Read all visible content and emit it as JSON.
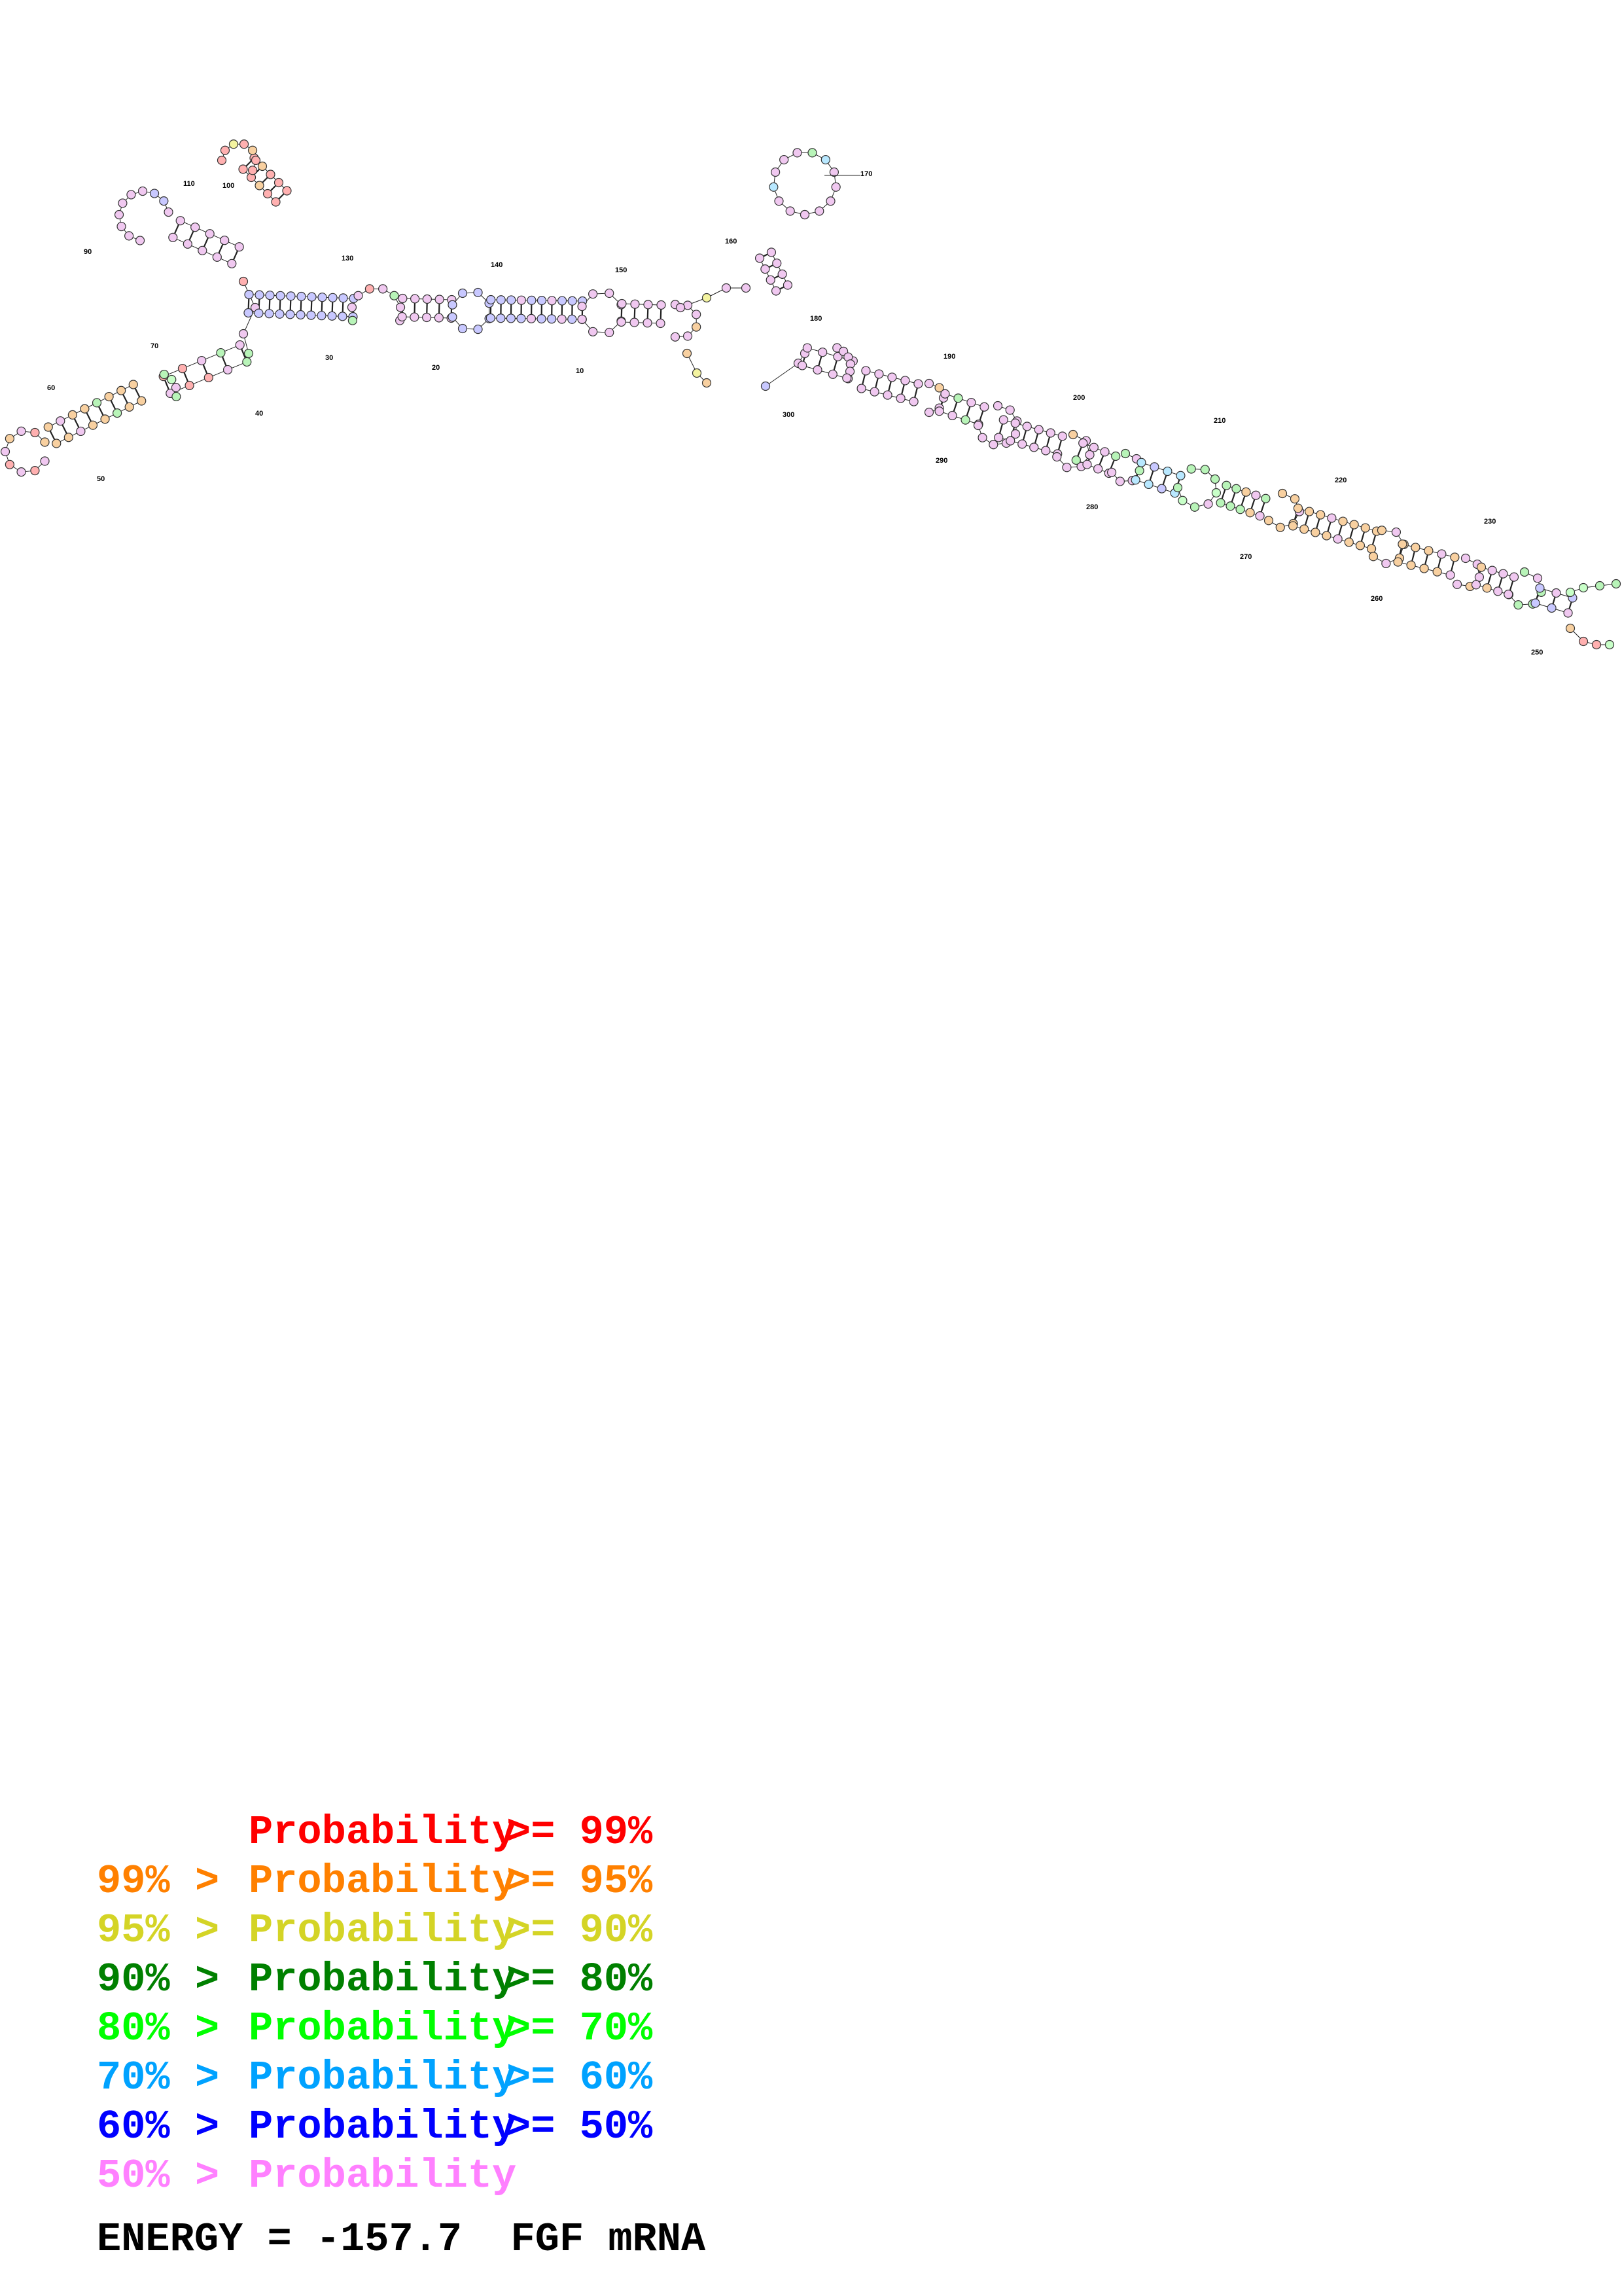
{
  "position_labels": [
    "10",
    "20",
    "30",
    "40",
    "50",
    "60",
    "70",
    "90",
    "100",
    "110",
    "130",
    "140",
    "150",
    "160",
    "170",
    "180",
    "190",
    "200",
    "210",
    "220",
    "230",
    "250",
    "260",
    "270",
    "280",
    "290",
    "300"
  ],
  "legend": [
    {
      "left": "",
      "sep": "",
      "mid": "Probability",
      "right": ">= 99%",
      "color": "#ff0000"
    },
    {
      "left": "99%",
      "sep": ">",
      "mid": "Probability",
      "right": ">= 95%",
      "color": "#ff8000"
    },
    {
      "left": "95%",
      "sep": ">",
      "mid": "Probability",
      "right": ">= 90%",
      "color": "#d4d426"
    },
    {
      "left": "90%",
      "sep": ">",
      "mid": "Probability",
      "right": ">= 80%",
      "color": "#008000"
    },
    {
      "left": "80%",
      "sep": ">",
      "mid": "Probability",
      "right": ">= 70%",
      "color": "#00ff00"
    },
    {
      "left": "70%",
      "sep": ">",
      "mid": "Probability",
      "right": ">= 60%",
      "color": "#00a2ff"
    },
    {
      "left": "60%",
      "sep": ">",
      "mid": "Probability",
      "right": ">= 50%",
      "color": "#0000ff"
    },
    {
      "left": "50%",
      "sep": ">",
      "mid": "Probability",
      "right": "",
      "color": "#ff80ff"
    }
  ],
  "energy": {
    "label": "ENERGY =",
    "value": "-157.7",
    "name": "FGF mRNA"
  }
}
